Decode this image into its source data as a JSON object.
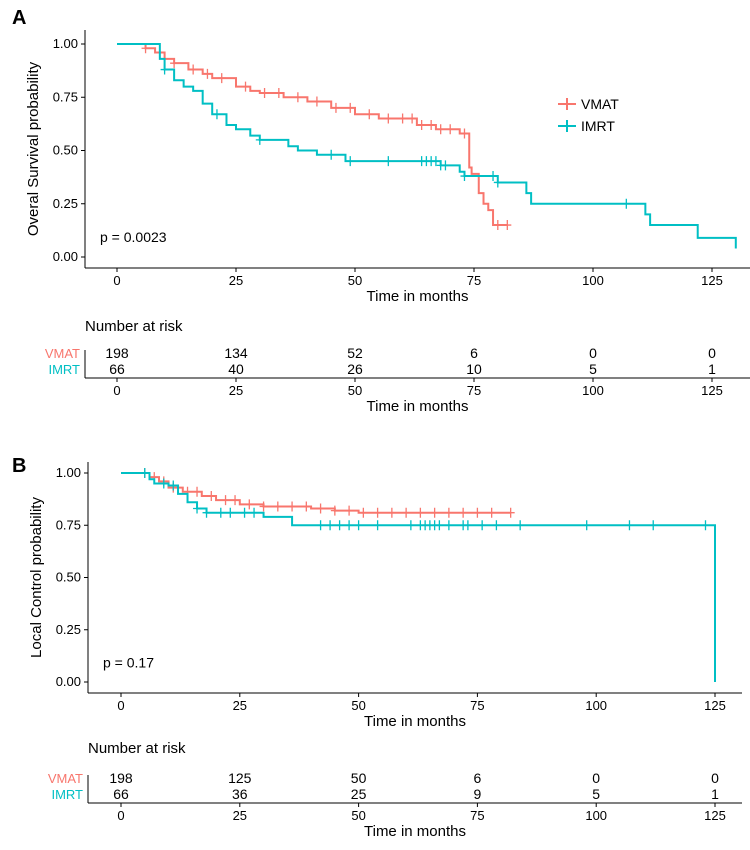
{
  "colors": {
    "VMAT": "#F8766D",
    "IMRT": "#00BFC4"
  },
  "chart_data": [
    {
      "type": "line",
      "panel_label": "A",
      "title": "",
      "xlabel": "Time in months",
      "ylabel": "Overal Survival probability",
      "xlim": [
        0,
        130
      ],
      "ylim": [
        0,
        1
      ],
      "xticks": [
        "0",
        "25",
        "50",
        "75",
        "100",
        "125"
      ],
      "yticks": [
        "0.00",
        "0.25",
        "0.50",
        "0.75",
        "1.00"
      ],
      "pvalue": "p = 0.0023",
      "legend": {
        "position": "right",
        "entries": [
          "VMAT",
          "IMRT"
        ]
      },
      "series": [
        {
          "name": "VMAT",
          "steps": [
            [
              0,
              1
            ],
            [
              5,
              1
            ],
            [
              6,
              0.98
            ],
            [
              8,
              0.96
            ],
            [
              10,
              0.93
            ],
            [
              12,
              0.91
            ],
            [
              15,
              0.88
            ],
            [
              18,
              0.86
            ],
            [
              20,
              0.84
            ],
            [
              25,
              0.8
            ],
            [
              28,
              0.78
            ],
            [
              30,
              0.77
            ],
            [
              35,
              0.75
            ],
            [
              40,
              0.73
            ],
            [
              45,
              0.7
            ],
            [
              50,
              0.67
            ],
            [
              55,
              0.65
            ],
            [
              63,
              0.62
            ],
            [
              67,
              0.6
            ],
            [
              72,
              0.58
            ],
            [
              74,
              0.42
            ],
            [
              74.5,
              0.39
            ],
            [
              76,
              0.3
            ],
            [
              77,
              0.25
            ],
            [
              78,
              0.22
            ],
            [
              79,
              0.15
            ],
            [
              82,
              0.15
            ]
          ],
          "censored": [
            6,
            9,
            12,
            16,
            19,
            22,
            27,
            31,
            34,
            38,
            42,
            46,
            49,
            53,
            57,
            60,
            62,
            64,
            66,
            68,
            70,
            73,
            80,
            82
          ]
        },
        {
          "name": "IMRT",
          "steps": [
            [
              0,
              1
            ],
            [
              8,
              1
            ],
            [
              9,
              0.93
            ],
            [
              10,
              0.88
            ],
            [
              12,
              0.83
            ],
            [
              14,
              0.8
            ],
            [
              16,
              0.78
            ],
            [
              18,
              0.72
            ],
            [
              20,
              0.67
            ],
            [
              23,
              0.62
            ],
            [
              25,
              0.6
            ],
            [
              28,
              0.57
            ],
            [
              30,
              0.55
            ],
            [
              36,
              0.52
            ],
            [
              38,
              0.5
            ],
            [
              42,
              0.48
            ],
            [
              48,
              0.45
            ],
            [
              60,
              0.45
            ],
            [
              68,
              0.43
            ],
            [
              72,
              0.4
            ],
            [
              73,
              0.38
            ],
            [
              79,
              0.38
            ],
            [
              80,
              0.35
            ],
            [
              86,
              0.3
            ],
            [
              87,
              0.25
            ],
            [
              110,
              0.25
            ],
            [
              111,
              0.2
            ],
            [
              112,
              0.15
            ],
            [
              122,
              0.09
            ],
            [
              130,
              0.09
            ],
            [
              130,
              0.04
            ]
          ],
          "censored": [
            10,
            21,
            30,
            45,
            49,
            57,
            64,
            65,
            66,
            67,
            68,
            69,
            73,
            79,
            80,
            107
          ]
        }
      ],
      "risk_table": {
        "title": "Number at risk",
        "times": [
          0,
          25,
          50,
          75,
          100,
          125
        ],
        "rows": [
          {
            "name": "VMAT",
            "values": [
              "198",
              "134",
              "52",
              "6",
              "0",
              "0"
            ]
          },
          {
            "name": "IMRT",
            "values": [
              "66",
              "40",
              "26",
              "10",
              "5",
              "1"
            ]
          }
        ],
        "xlabel": "Time in months"
      }
    },
    {
      "type": "line",
      "panel_label": "B",
      "title": "",
      "xlabel": "Time in months",
      "ylabel": "Local Control probability",
      "xlim": [
        0,
        130
      ],
      "ylim": [
        0,
        1
      ],
      "xticks": [
        "0",
        "25",
        "50",
        "75",
        "100",
        "125"
      ],
      "yticks": [
        "0.00",
        "0.25",
        "0.50",
        "0.75",
        "1.00"
      ],
      "pvalue": "p = 0.17",
      "series": [
        {
          "name": "VMAT",
          "steps": [
            [
              0,
              1
            ],
            [
              4,
              1
            ],
            [
              6,
              0.98
            ],
            [
              8,
              0.96
            ],
            [
              10,
              0.93
            ],
            [
              13,
              0.91
            ],
            [
              17,
              0.89
            ],
            [
              20,
              0.87
            ],
            [
              25,
              0.85
            ],
            [
              30,
              0.84
            ],
            [
              40,
              0.83
            ],
            [
              45,
              0.82
            ],
            [
              50,
              0.81
            ],
            [
              82,
              0.81
            ]
          ],
          "censored": [
            5,
            7,
            9,
            11,
            14,
            16,
            19,
            22,
            24,
            27,
            30,
            33,
            36,
            39,
            42,
            45,
            48,
            51,
            54,
            57,
            60,
            63,
            66,
            69,
            72,
            75,
            78,
            82
          ]
        },
        {
          "name": "IMRT",
          "steps": [
            [
              0,
              1
            ],
            [
              5,
              1
            ],
            [
              6,
              0.97
            ],
            [
              7,
              0.95
            ],
            [
              10,
              0.94
            ],
            [
              12,
              0.9
            ],
            [
              14,
              0.86
            ],
            [
              16,
              0.83
            ],
            [
              18,
              0.81
            ],
            [
              25,
              0.81
            ],
            [
              30,
              0.79
            ],
            [
              36,
              0.75
            ],
            [
              125,
              0.75
            ],
            [
              125,
              0
            ]
          ],
          "censored": [
            5,
            9,
            11,
            16,
            18,
            21,
            23,
            26,
            28,
            42,
            44,
            46,
            48,
            50,
            54,
            61,
            63,
            64,
            65,
            66,
            67,
            69,
            72,
            73,
            76,
            79,
            84,
            98,
            107,
            112,
            123
          ]
        }
      ],
      "risk_table": {
        "title": "Number at risk",
        "times": [
          0,
          25,
          50,
          75,
          100,
          125
        ],
        "rows": [
          {
            "name": "VMAT",
            "values": [
              "198",
              "125",
              "50",
              "6",
              "0",
              "0"
            ]
          },
          {
            "name": "IMRT",
            "values": [
              "66",
              "36",
              "25",
              "9",
              "5",
              "1"
            ]
          }
        ],
        "xlabel": "Time in months"
      }
    }
  ]
}
